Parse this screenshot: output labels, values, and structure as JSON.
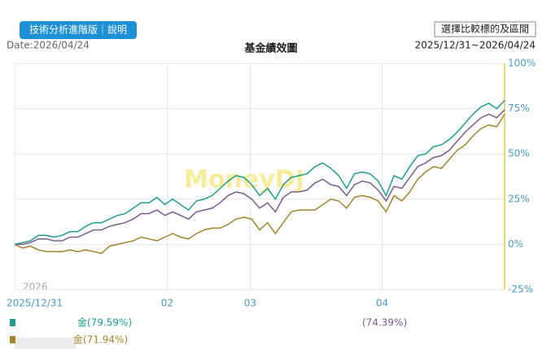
{
  "header": {
    "tool_button": "技術分析進階版｜說明",
    "date": "Date:2026/04/24",
    "compare_button": "選擇比較標的及區間",
    "range": "2025/12/31~2026/04/24"
  },
  "chart_data": {
    "type": "line",
    "title": "基金績效圖",
    "watermark": "MoneyDJ",
    "year_label": "2026",
    "x": [
      0,
      1,
      2,
      3,
      4,
      5,
      6,
      7,
      8,
      9,
      10,
      11,
      12,
      13,
      14,
      15,
      16,
      17,
      18,
      19,
      20,
      21,
      22,
      23,
      24,
      25,
      26,
      27,
      28,
      29,
      30,
      31,
      32,
      33,
      34,
      35,
      36,
      37,
      38,
      39,
      40,
      41,
      42,
      43,
      44,
      45,
      46,
      47,
      48,
      49,
      50,
      51,
      52,
      53,
      54,
      55,
      56,
      57,
      58,
      59,
      60,
      61,
      62
    ],
    "xlim": [
      0,
      62
    ],
    "xticks": [
      {
        "value": 0,
        "label": "2025/12/31"
      },
      {
        "value": 19.3,
        "label": "02"
      },
      {
        "value": 29.8,
        "label": "03"
      },
      {
        "value": 46.5,
        "label": "04"
      }
    ],
    "ylim": [
      -25,
      100
    ],
    "yticks": [
      {
        "value": -25,
        "label": "-25%"
      },
      {
        "value": 0,
        "label": "0%"
      },
      {
        "value": 25,
        "label": "25%"
      },
      {
        "value": 50,
        "label": "50%"
      },
      {
        "value": 75,
        "label": "75%"
      },
      {
        "value": 100,
        "label": "100%"
      }
    ],
    "grid": true,
    "series": [
      {
        "name": "金(79.59%)",
        "color": "#1f9e8e",
        "values": [
          0,
          1,
          2,
          5,
          5,
          4,
          5,
          7,
          7,
          10,
          12,
          12,
          14,
          16,
          17,
          20,
          23,
          23,
          26,
          22,
          25,
          22,
          19,
          24,
          25,
          27,
          31,
          35,
          38,
          37,
          33,
          27,
          31,
          25,
          33,
          37,
          38,
          39,
          43,
          45,
          42,
          38,
          31,
          39,
          40,
          39,
          35,
          27,
          38,
          36,
          43,
          49,
          50,
          54,
          55,
          58,
          62,
          67,
          72,
          76,
          78,
          75,
          79.59
        ]
      },
      {
        "name": "(74.39%)",
        "color": "#7c5b8e",
        "values": [
          0,
          0,
          1,
          3,
          3,
          2,
          2,
          4,
          4,
          6,
          8,
          8,
          10,
          11,
          12,
          14,
          17,
          17,
          19,
          16,
          18,
          16,
          14,
          18,
          19,
          20,
          23,
          27,
          29,
          28,
          25,
          20,
          23,
          18,
          26,
          29,
          29,
          30,
          34,
          36,
          33,
          32,
          27,
          33,
          35,
          34,
          30,
          24,
          32,
          31,
          37,
          43,
          45,
          48,
          49,
          52,
          57,
          62,
          66,
          70,
          72,
          70,
          74.39
        ]
      },
      {
        "name": "金(71.94%)",
        "color": "#a3832c",
        "values": [
          0,
          -2,
          -1,
          -3,
          -4,
          -4,
          -4,
          -3,
          -4,
          -3,
          -4,
          -5,
          -1,
          0,
          1,
          2,
          4,
          3,
          2,
          4,
          6,
          4,
          3,
          6,
          8,
          9,
          9,
          11,
          14,
          15,
          14,
          8,
          12,
          6,
          12,
          18,
          19,
          19,
          19,
          22,
          25,
          24,
          20,
          26,
          27,
          26,
          24,
          18,
          27,
          24,
          29,
          36,
          40,
          43,
          42,
          47,
          52,
          55,
          60,
          64,
          66,
          65,
          71.94
        ]
      }
    ]
  }
}
